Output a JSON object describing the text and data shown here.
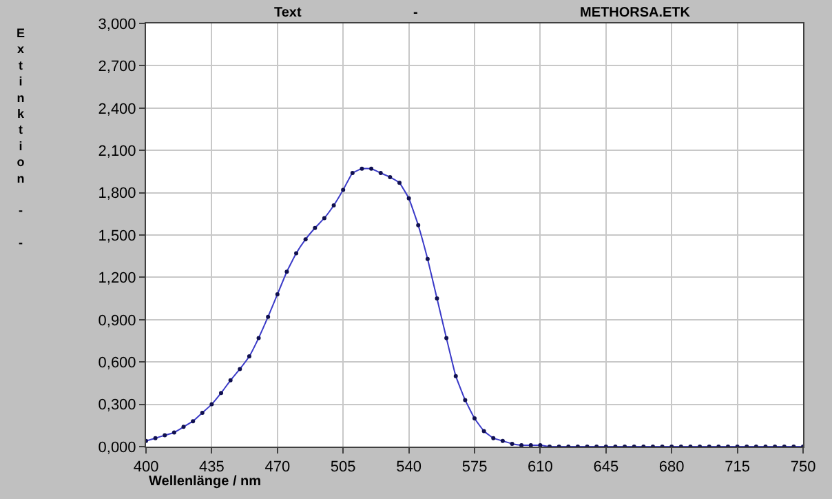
{
  "chart_data": {
    "type": "line",
    "title": "Text",
    "xlabel": "Wellenlänge / nm",
    "ylabel": "Extinktion - -",
    "annotations": [
      "-",
      "METHORSA.ETK"
    ],
    "x": [
      400,
      405,
      410,
      415,
      420,
      425,
      430,
      435,
      440,
      445,
      450,
      455,
      460,
      465,
      470,
      475,
      480,
      485,
      490,
      495,
      500,
      505,
      510,
      515,
      520,
      525,
      530,
      535,
      540,
      545,
      550,
      555,
      560,
      565,
      570,
      575,
      580,
      585,
      590,
      595,
      600,
      605,
      610,
      615,
      620,
      625,
      630,
      635,
      640,
      645,
      650,
      655,
      660,
      665,
      670,
      675,
      680,
      685,
      690,
      695,
      700,
      705,
      710,
      715,
      720,
      725,
      730,
      735,
      740,
      745,
      750
    ],
    "series": [
      {
        "color": "#3a3ac8",
        "values": [
          0.04,
          0.06,
          0.08,
          0.1,
          0.14,
          0.18,
          0.24,
          0.3,
          0.38,
          0.47,
          0.55,
          0.64,
          0.77,
          0.92,
          1.08,
          1.24,
          1.37,
          1.47,
          1.55,
          1.62,
          1.71,
          1.82,
          1.94,
          1.97,
          1.97,
          1.94,
          1.91,
          1.87,
          1.76,
          1.57,
          1.33,
          1.05,
          0.77,
          0.5,
          0.33,
          0.2,
          0.11,
          0.06,
          0.04,
          0.02,
          0.01,
          0.01,
          0.01,
          0,
          0,
          0,
          0,
          0,
          0,
          0,
          0,
          0,
          0,
          0,
          0,
          0,
          0,
          0,
          0,
          0,
          0,
          0,
          0,
          0,
          0,
          0,
          0,
          0,
          0,
          0,
          0
        ]
      }
    ],
    "xlim": [
      400,
      750
    ],
    "xticks": [
      400,
      435,
      470,
      505,
      540,
      575,
      610,
      645,
      680,
      715,
      750
    ],
    "ylim": [
      0,
      3
    ],
    "yticks": [
      {
        "value": 0,
        "label": "0,000"
      },
      {
        "value": 0.3,
        "label": "0,300"
      },
      {
        "value": 0.6,
        "label": "0,600"
      },
      {
        "value": 0.9,
        "label": "0,900"
      },
      {
        "value": 1.2,
        "label": "1,200"
      },
      {
        "value": 1.5,
        "label": "1,500"
      },
      {
        "value": 1.8,
        "label": "1,800"
      },
      {
        "value": 2.1,
        "label": "2,100"
      },
      {
        "value": 2.4,
        "label": "2,400"
      },
      {
        "value": 2.7,
        "label": "2,700"
      },
      {
        "value": 3,
        "label": "3,000"
      }
    ],
    "grid": true,
    "marker": "circle",
    "line_style": "solid"
  }
}
